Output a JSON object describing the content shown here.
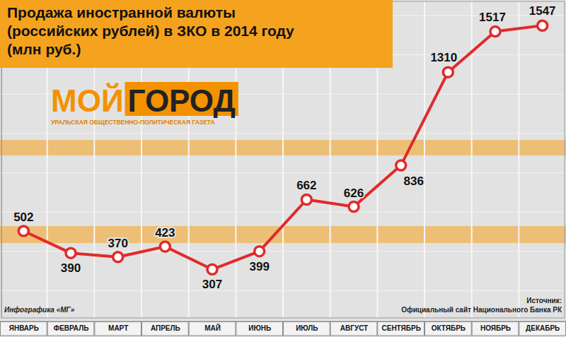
{
  "chart_data": {
    "type": "line",
    "title": "Продажа иностранной валюты (российских рублей) в ЗКО в 2014 году (млн руб.)",
    "categories": [
      "ЯНВАРЬ",
      "ФЕВРАЛЬ",
      "МАРТ",
      "АПРЕЛЬ",
      "МАЙ",
      "ИЮНЬ",
      "ИЮЛЬ",
      "АВГУСТ",
      "СЕНТЯБРЬ",
      "ОКТЯБРЬ",
      "НОЯБРЬ",
      "ДЕКАБРЬ"
    ],
    "values": [
      502,
      390,
      370,
      423,
      307,
      399,
      662,
      626,
      836,
      1310,
      1517,
      1547
    ],
    "color": "#e02a2a",
    "marker": "circle",
    "ylim": [
      60,
      1670
    ],
    "yticks": [
      200,
      400,
      600,
      800,
      1000,
      1200,
      1400,
      1600
    ],
    "grid": true,
    "data_labels": true,
    "tick_labels": "x",
    "annotations": {
      "logo_left": "МОЙ",
      "logo_right": "ГОРОД",
      "logo_tagline": "УРАЛЬСКАЯ ОБЩЕСТВЕННО-ПОЛИТИЧЕСКАЯ ГАЗЕТА",
      "credit": "Инфографика «МГ»",
      "source_label": "Источник:",
      "source": "Официальный сайт Национального Банка РК"
    }
  }
}
